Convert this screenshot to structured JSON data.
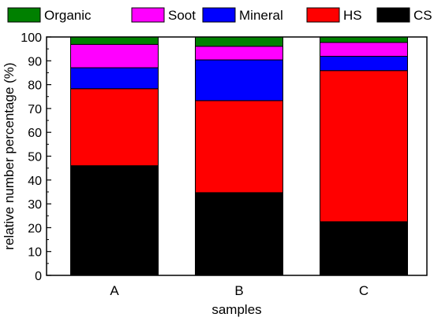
{
  "chart_data": {
    "type": "bar",
    "stacked": true,
    "categories": [
      "A",
      "B",
      "C"
    ],
    "series": [
      {
        "name": "CS",
        "color": "#000000",
        "values": [
          46,
          34.7,
          22.5
        ]
      },
      {
        "name": "HS",
        "color": "#ff0000",
        "values": [
          32.3,
          38.6,
          63.4
        ]
      },
      {
        "name": "Mineral",
        "color": "#0000ff",
        "values": [
          8.8,
          17.1,
          6.0
        ]
      },
      {
        "name": "Soot",
        "color": "#ff00ff",
        "values": [
          9.8,
          5.7,
          5.8
        ]
      },
      {
        "name": "Organic",
        "color": "#008000",
        "values": [
          3.1,
          3.9,
          2.3
        ]
      }
    ],
    "legend_order": [
      "Organic",
      "Soot",
      "Mineral",
      "HS",
      "CS"
    ],
    "legend_position": "top",
    "xlabel": "samples",
    "ylabel": "relative number percentage (%)",
    "ylim": [
      0,
      100
    ],
    "yticks": [
      "0",
      "10",
      "20",
      "30",
      "40",
      "50",
      "60",
      "70",
      "80",
      "90",
      "100"
    ],
    "grid": false
  }
}
